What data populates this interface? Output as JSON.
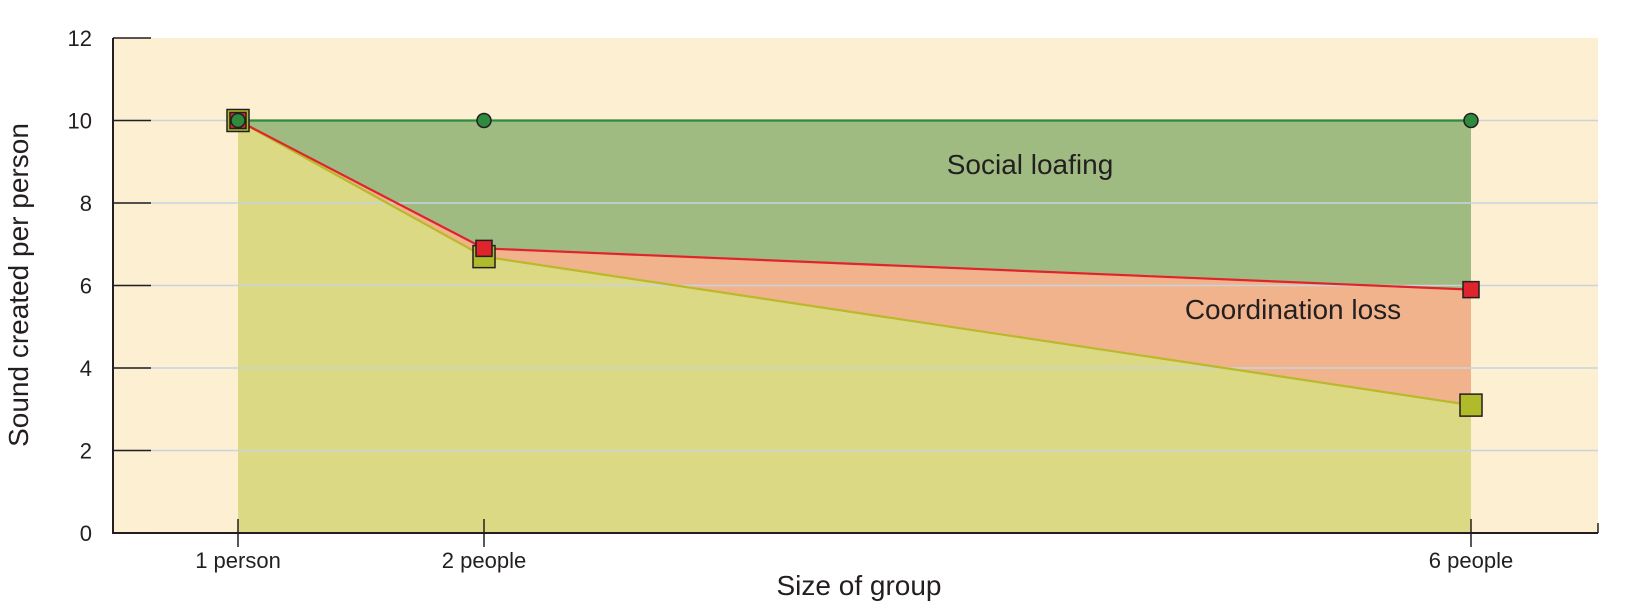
{
  "chart_data": {
    "type": "area",
    "xlabel": "Size of group",
    "ylabel": "Sound created per person",
    "categories": [
      "1 person",
      "2 people",
      "6 people"
    ],
    "x": [
      1,
      2,
      6
    ],
    "ylim": [
      0,
      12
    ],
    "yticks": [
      0,
      2,
      4,
      6,
      8,
      10,
      12
    ],
    "grid": true,
    "series": [
      {
        "values": [
          10,
          10,
          10
        ],
        "marker": "circle",
        "color": "#2e8b3e"
      },
      {
        "values": [
          10,
          6.9,
          5.9
        ],
        "marker": "square",
        "color": "#e0242b"
      },
      {
        "values": [
          10,
          6.7,
          3.1
        ],
        "marker": "square",
        "color": "#a8b52a"
      }
    ],
    "annotations": [
      "Social loafing",
      "Coordination loss"
    ],
    "colors": {
      "background": "#fdefd2",
      "social_loafing_fill": "#a0bb82",
      "coordination_loss_fill": "#f0b38c",
      "base_fill": "#dcd985",
      "grid": "#c8d3dc",
      "axis": "#231f20"
    }
  }
}
